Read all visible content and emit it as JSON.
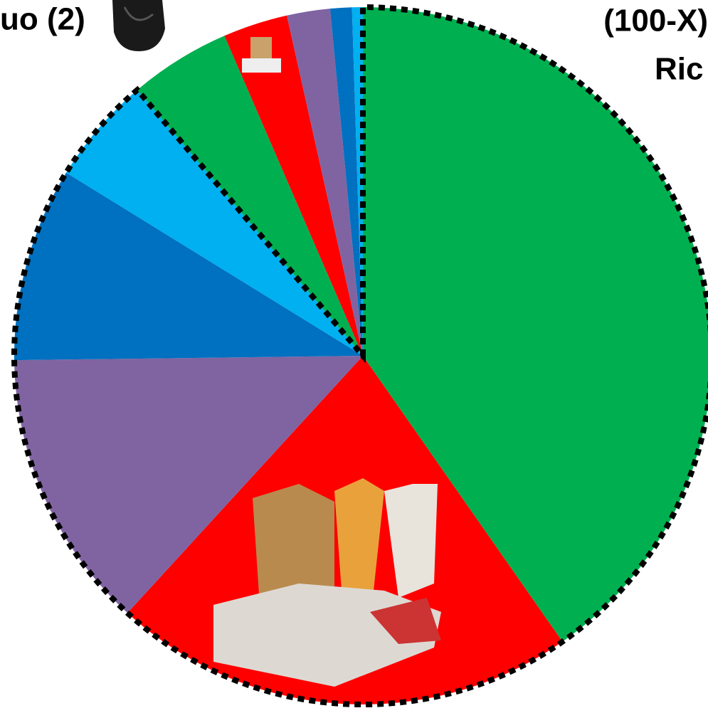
{
  "chart_data": {
    "type": "pie",
    "annotations": [
      "uo (2)",
      "(100-X)",
      "Ric"
    ],
    "values": [
      40.3,
      21.5,
      13,
      9,
      5,
      4.7,
      3,
      2,
      1,
      0.5
    ],
    "colors": [
      "#00b050",
      "#ff0000",
      "#8064a2",
      "#0070c0",
      "#00b0f0",
      "#00b050",
      "#ff0000",
      "#8064a2",
      "#0070c0",
      "#00b0f0"
    ],
    "start_angle": 0,
    "direction": "clockwise"
  }
}
